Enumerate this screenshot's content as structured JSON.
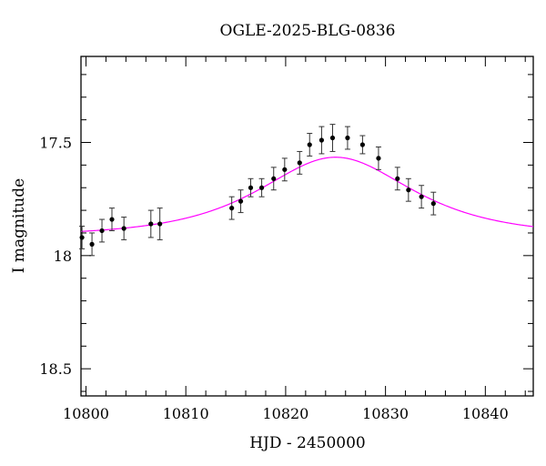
{
  "chart_data": {
    "type": "scatter",
    "title": "OGLE-2025-BLG-0836",
    "xlabel": "HJD - 2450000",
    "ylabel": "I magnitude",
    "xlim": [
      10799.5,
      10844.8
    ],
    "ylim": [
      18.62,
      17.12
    ],
    "y_inverted": true,
    "x_ticks": [
      10800,
      10810,
      10820,
      10830,
      10840
    ],
    "x_tick_labels": [
      "10800",
      "10810",
      "10820",
      "10830",
      "10840"
    ],
    "y_ticks": [
      17.5,
      18,
      18.5
    ],
    "y_tick_labels": [
      "17.5",
      "18",
      "18.5"
    ],
    "grid": false,
    "colors": {
      "model": "#ff00ff",
      "points": "#000000",
      "axes": "#000000"
    },
    "series": [
      {
        "kind": "points_with_errors",
        "x": [
          10799.6,
          10800.6,
          10801.6,
          10802.6,
          10803.8,
          10806.5,
          10807.4,
          10814.6,
          10815.5,
          10816.5,
          10817.6,
          10818.8,
          10819.9,
          10821.4,
          10822.4,
          10823.6,
          10824.7,
          10826.2,
          10827.7,
          10829.3,
          10831.2,
          10832.3,
          10833.6,
          10834.8
        ],
        "y": [
          17.92,
          17.95,
          17.89,
          17.84,
          17.88,
          17.86,
          17.86,
          17.79,
          17.76,
          17.7,
          17.7,
          17.66,
          17.62,
          17.59,
          17.51,
          17.49,
          17.48,
          17.48,
          17.51,
          17.57,
          17.66,
          17.71,
          17.74,
          17.77
        ],
        "err": [
          0.05,
          0.05,
          0.05,
          0.05,
          0.05,
          0.06,
          0.07,
          0.05,
          0.05,
          0.04,
          0.04,
          0.05,
          0.05,
          0.05,
          0.05,
          0.06,
          0.06,
          0.05,
          0.04,
          0.05,
          0.05,
          0.05,
          0.05,
          0.05
        ]
      },
      {
        "kind": "model_curve",
        "t0": 10825.0,
        "tE": 9.5,
        "u0": 0.95,
        "base_mag": 17.915
      }
    ]
  }
}
